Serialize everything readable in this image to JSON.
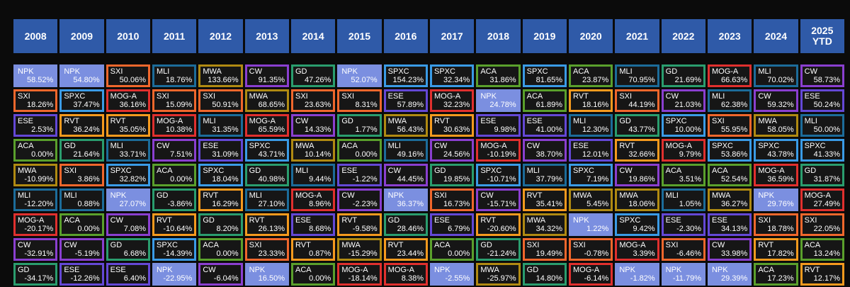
{
  "table": {
    "ticker_colors": {
      "NPK": "#7b8fe0",
      "SXI": "#f0672c",
      "MLI": "#1c6c9a",
      "MWA": "#b08a12",
      "CW": "#8a3fd0",
      "GD": "#2a9d6e",
      "SPXC": "#3a9be6",
      "ESE": "#6448d6",
      "ACA": "#5aa02c",
      "MOG-A": "#e0302e",
      "RVT": "#f59a1e"
    },
    "filled_tickers": [
      "NPK"
    ],
    "columns": [
      {
        "year": "2008",
        "cells": [
          {
            "ticker": "NPK",
            "return": "58.52%"
          },
          {
            "ticker": "SXI",
            "return": "18.26%"
          },
          {
            "ticker": "ESE",
            "return": "2.53%"
          },
          {
            "ticker": "ACA",
            "return": "0.00%"
          },
          {
            "ticker": "MWA",
            "return": "-10.99%"
          },
          {
            "ticker": "MLI",
            "return": "-12.20%"
          },
          {
            "ticker": "MOG-A",
            "return": "-20.17%"
          },
          {
            "ticker": "CW",
            "return": "-32.91%"
          },
          {
            "ticker": "GD",
            "return": "-34.17%"
          }
        ]
      },
      {
        "year": "2009",
        "cells": [
          {
            "ticker": "NPK",
            "return": "54.80%"
          },
          {
            "ticker": "SPXC",
            "return": "37.47%"
          },
          {
            "ticker": "RVT",
            "return": "36.24%"
          },
          {
            "ticker": "GD",
            "return": "21.64%"
          },
          {
            "ticker": "SXI",
            "return": "3.86%"
          },
          {
            "ticker": "MLI",
            "return": "0.88%"
          },
          {
            "ticker": "ACA",
            "return": "0.00%"
          },
          {
            "ticker": "CW",
            "return": "-5.19%"
          },
          {
            "ticker": "ESE",
            "return": "-12.26%"
          }
        ]
      },
      {
        "year": "2010",
        "cells": [
          {
            "ticker": "SXI",
            "return": "50.06%"
          },
          {
            "ticker": "MOG-A",
            "return": "36.16%"
          },
          {
            "ticker": "RVT",
            "return": "35.05%"
          },
          {
            "ticker": "MLI",
            "return": "33.71%"
          },
          {
            "ticker": "SPXC",
            "return": "32.82%"
          },
          {
            "ticker": "NPK",
            "return": "27.07%"
          },
          {
            "ticker": "CW",
            "return": "7.08%"
          },
          {
            "ticker": "GD",
            "return": "6.68%"
          },
          {
            "ticker": "ESE",
            "return": "6.40%"
          }
        ]
      },
      {
        "year": "2011",
        "cells": [
          {
            "ticker": "MLI",
            "return": "18.76%"
          },
          {
            "ticker": "SXI",
            "return": "15.09%"
          },
          {
            "ticker": "MOG-A",
            "return": "10.38%"
          },
          {
            "ticker": "CW",
            "return": "7.51%"
          },
          {
            "ticker": "ACA",
            "return": "0.00%"
          },
          {
            "ticker": "GD",
            "return": "-3.86%"
          },
          {
            "ticker": "RVT",
            "return": "-10.64%"
          },
          {
            "ticker": "SPXC",
            "return": "-14.39%"
          },
          {
            "ticker": "NPK",
            "return": "-22.95%"
          }
        ]
      },
      {
        "year": "2012",
        "cells": [
          {
            "ticker": "MWA",
            "return": "133.66%"
          },
          {
            "ticker": "SXI",
            "return": "50.91%"
          },
          {
            "ticker": "MLI",
            "return": "31.35%"
          },
          {
            "ticker": "ESE",
            "return": "31.09%"
          },
          {
            "ticker": "SPXC",
            "return": "18.04%"
          },
          {
            "ticker": "RVT",
            "return": "16.29%"
          },
          {
            "ticker": "GD",
            "return": "8.20%"
          },
          {
            "ticker": "ACA",
            "return": "0.00%"
          },
          {
            "ticker": "CW",
            "return": "-6.04%"
          }
        ]
      },
      {
        "year": "2013",
        "cells": [
          {
            "ticker": "CW",
            "return": "91.35%"
          },
          {
            "ticker": "MWA",
            "return": "68.65%"
          },
          {
            "ticker": "MOG-A",
            "return": "65.59%"
          },
          {
            "ticker": "SPXC",
            "return": "43.71%"
          },
          {
            "ticker": "GD",
            "return": "40.98%"
          },
          {
            "ticker": "MLI",
            "return": "27.10%"
          },
          {
            "ticker": "RVT",
            "return": "26.13%"
          },
          {
            "ticker": "SXI",
            "return": "23.33%"
          },
          {
            "ticker": "NPK",
            "return": "16.50%"
          }
        ]
      },
      {
        "year": "2014",
        "cells": [
          {
            "ticker": "GD",
            "return": "47.26%"
          },
          {
            "ticker": "SXI",
            "return": "23.63%"
          },
          {
            "ticker": "CW",
            "return": "14.33%"
          },
          {
            "ticker": "MWA",
            "return": "10.14%"
          },
          {
            "ticker": "MLI",
            "return": "9.44%"
          },
          {
            "ticker": "MOG-A",
            "return": "8.96%"
          },
          {
            "ticker": "ESE",
            "return": "8.68%"
          },
          {
            "ticker": "RVT",
            "return": "0.87%"
          },
          {
            "ticker": "ACA",
            "return": "0.00%"
          }
        ]
      },
      {
        "year": "2015",
        "cells": [
          {
            "ticker": "NPK",
            "return": "52.07%"
          },
          {
            "ticker": "SXI",
            "return": "8.31%"
          },
          {
            "ticker": "GD",
            "return": "1.77%"
          },
          {
            "ticker": "ACA",
            "return": "0.00%"
          },
          {
            "ticker": "ESE",
            "return": "-1.22%"
          },
          {
            "ticker": "CW",
            "return": "-2.23%"
          },
          {
            "ticker": "RVT",
            "return": "-9.58%"
          },
          {
            "ticker": "MWA",
            "return": "-15.29%"
          },
          {
            "ticker": "MOG-A",
            "return": "-18.14%"
          }
        ]
      },
      {
        "year": "2016",
        "cells": [
          {
            "ticker": "SPXC",
            "return": "154.23%"
          },
          {
            "ticker": "ESE",
            "return": "57.89%"
          },
          {
            "ticker": "MWA",
            "return": "56.43%"
          },
          {
            "ticker": "MLI",
            "return": "49.16%"
          },
          {
            "ticker": "CW",
            "return": "44.45%"
          },
          {
            "ticker": "NPK",
            "return": "36.37%"
          },
          {
            "ticker": "GD",
            "return": "28.46%"
          },
          {
            "ticker": "RVT",
            "return": "23.44%"
          },
          {
            "ticker": "MOG-A",
            "return": "8.38%"
          }
        ]
      },
      {
        "year": "2017",
        "cells": [
          {
            "ticker": "SPXC",
            "return": "32.34%"
          },
          {
            "ticker": "MOG-A",
            "return": "32.23%"
          },
          {
            "ticker": "RVT",
            "return": "30.63%"
          },
          {
            "ticker": "CW",
            "return": "24.56%"
          },
          {
            "ticker": "GD",
            "return": "19.85%"
          },
          {
            "ticker": "SXI",
            "return": "16.73%"
          },
          {
            "ticker": "ESE",
            "return": "6.79%"
          },
          {
            "ticker": "ACA",
            "return": "0.00%"
          },
          {
            "ticker": "NPK",
            "return": "-2.55%"
          }
        ]
      },
      {
        "year": "2018",
        "cells": [
          {
            "ticker": "ACA",
            "return": "31.86%"
          },
          {
            "ticker": "NPK",
            "return": "24.78%"
          },
          {
            "ticker": "ESE",
            "return": "9.98%"
          },
          {
            "ticker": "MOG-A",
            "return": "-10.19%"
          },
          {
            "ticker": "SPXC",
            "return": "-10.71%"
          },
          {
            "ticker": "CW",
            "return": "-15.71%"
          },
          {
            "ticker": "RVT",
            "return": "-20.60%"
          },
          {
            "ticker": "GD",
            "return": "-21.24%"
          },
          {
            "ticker": "MWA",
            "return": "-25.97%"
          }
        ]
      },
      {
        "year": "2019",
        "cells": [
          {
            "ticker": "SPXC",
            "return": "81.65%"
          },
          {
            "ticker": "ACA",
            "return": "61.89%"
          },
          {
            "ticker": "ESE",
            "return": "41.00%"
          },
          {
            "ticker": "CW",
            "return": "38.70%"
          },
          {
            "ticker": "MLI",
            "return": "37.79%"
          },
          {
            "ticker": "RVT",
            "return": "35.41%"
          },
          {
            "ticker": "MWA",
            "return": "34.32%"
          },
          {
            "ticker": "SXI",
            "return": "19.49%"
          },
          {
            "ticker": "GD",
            "return": "14.80%"
          }
        ]
      },
      {
        "year": "2020",
        "cells": [
          {
            "ticker": "ACA",
            "return": "23.87%"
          },
          {
            "ticker": "RVT",
            "return": "18.16%"
          },
          {
            "ticker": "MLI",
            "return": "12.30%"
          },
          {
            "ticker": "ESE",
            "return": "12.01%"
          },
          {
            "ticker": "SPXC",
            "return": "7.19%"
          },
          {
            "ticker": "MWA",
            "return": "5.45%"
          },
          {
            "ticker": "NPK",
            "return": "1.22%"
          },
          {
            "ticker": "SXI",
            "return": "-0.78%"
          },
          {
            "ticker": "MOG-A",
            "return": "-6.14%"
          }
        ]
      },
      {
        "year": "2021",
        "cells": [
          {
            "ticker": "MLI",
            "return": "70.95%"
          },
          {
            "ticker": "SXI",
            "return": "44.19%"
          },
          {
            "ticker": "GD",
            "return": "43.77%"
          },
          {
            "ticker": "RVT",
            "return": "32.66%"
          },
          {
            "ticker": "CW",
            "return": "19.86%"
          },
          {
            "ticker": "MWA",
            "return": "18.06%"
          },
          {
            "ticker": "SPXC",
            "return": "9.42%"
          },
          {
            "ticker": "MOG-A",
            "return": "3.39%"
          },
          {
            "ticker": "NPK",
            "return": "-1.82%"
          }
        ]
      },
      {
        "year": "2022",
        "cells": [
          {
            "ticker": "GD",
            "return": "21.69%"
          },
          {
            "ticker": "CW",
            "return": "21.03%"
          },
          {
            "ticker": "SPXC",
            "return": "10.00%"
          },
          {
            "ticker": "MOG-A",
            "return": "9.79%"
          },
          {
            "ticker": "ACA",
            "return": "3.51%"
          },
          {
            "ticker": "MLI",
            "return": "1.05%"
          },
          {
            "ticker": "ESE",
            "return": "-2.30%"
          },
          {
            "ticker": "SXI",
            "return": "-6.46%"
          },
          {
            "ticker": "NPK",
            "return": "-11.79%"
          }
        ]
      },
      {
        "year": "2023",
        "cells": [
          {
            "ticker": "MOG-A",
            "return": "66.63%"
          },
          {
            "ticker": "MLI",
            "return": "62.38%"
          },
          {
            "ticker": "SXI",
            "return": "55.95%"
          },
          {
            "ticker": "SPXC",
            "return": "53.86%"
          },
          {
            "ticker": "ACA",
            "return": "52.54%"
          },
          {
            "ticker": "MWA",
            "return": "36.27%"
          },
          {
            "ticker": "ESE",
            "return": "34.13%"
          },
          {
            "ticker": "CW",
            "return": "33.98%"
          },
          {
            "ticker": "NPK",
            "return": "29.39%"
          }
        ]
      },
      {
        "year": "2024",
        "cells": [
          {
            "ticker": "MLI",
            "return": "70.02%"
          },
          {
            "ticker": "CW",
            "return": "59.32%"
          },
          {
            "ticker": "MWA",
            "return": "58.05%"
          },
          {
            "ticker": "SPXC",
            "return": "43.78%"
          },
          {
            "ticker": "MOG-A",
            "return": "36.59%"
          },
          {
            "ticker": "NPK",
            "return": "29.76%"
          },
          {
            "ticker": "SXI",
            "return": "18.78%"
          },
          {
            "ticker": "RVT",
            "return": "17.82%"
          },
          {
            "ticker": "ACA",
            "return": "17.23%"
          }
        ]
      },
      {
        "year": "2025 YTD",
        "cells": [
          {
            "ticker": "CW",
            "return": "58.73%"
          },
          {
            "ticker": "ESE",
            "return": "50.24%"
          },
          {
            "ticker": "MLI",
            "return": "50.00%"
          },
          {
            "ticker": "SPXC",
            "return": "41.33%"
          },
          {
            "ticker": "GD",
            "return": "31.87%"
          },
          {
            "ticker": "MOG-A",
            "return": "27.49%"
          },
          {
            "ticker": "SXI",
            "return": "22.05%"
          },
          {
            "ticker": "ACA",
            "return": "13.24%"
          },
          {
            "ticker": "RVT",
            "return": "12.17%"
          }
        ]
      }
    ]
  }
}
